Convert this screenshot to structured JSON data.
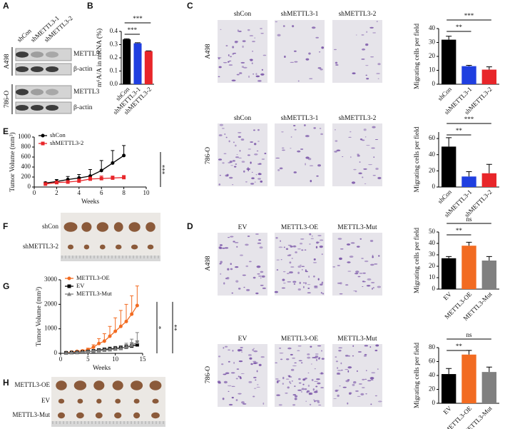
{
  "panel_letters": [
    "A",
    "B",
    "C",
    "D",
    "E",
    "F",
    "G",
    "H"
  ],
  "western_blot": {
    "lanes": [
      "shCon",
      "shMETTL3-1",
      "shMETTL3-2"
    ],
    "cell_lines": [
      {
        "name": "A498",
        "proteins": [
          "METTL3",
          "β-actin"
        ]
      },
      {
        "name": "786-O",
        "proteins": [
          "METTL3",
          "β-actin"
        ]
      }
    ]
  },
  "migration_images": [
    {
      "rows": [
        {
          "cell_line": "A498",
          "columns": [
            "shCon",
            "shMETTL3-1",
            "shMETTL3-2"
          ]
        },
        {
          "cell_line": "786-O",
          "columns": [
            "shCon",
            "shMETTL3-1",
            "shMETTL3-2"
          ]
        }
      ]
    },
    {
      "rows": [
        {
          "cell_line": "A498",
          "columns": [
            "EV",
            "METTL3-OE",
            "METTL3-Mut"
          ]
        },
        {
          "cell_line": "786-O",
          "columns": [
            "EV",
            "METTL3-OE",
            "METTL3-Mut"
          ]
        }
      ]
    }
  ],
  "tumor_photos": [
    {
      "rows": [
        "shCon",
        "shMETTL3-2"
      ]
    },
    {
      "rows": [
        "METTL3-OE",
        "EV",
        "METTL3-Mut"
      ]
    }
  ],
  "chart_data": [
    {
      "type": "bar",
      "ylabel": "m⁶A/A in mRNA (%)",
      "categories": [
        "shCon",
        "shMETTL3-1",
        "shMETTL3-2"
      ],
      "values": [
        0.34,
        0.31,
        0.25
      ],
      "errors": [
        0.004,
        0.004,
        0.003
      ],
      "colors": [
        "#000000",
        "#1f3fe0",
        "#e8262a"
      ],
      "ylim": [
        0,
        0.4
      ],
      "yticks": [
        {
          "value": 0,
          "label": "0.0"
        },
        0.1,
        0.2,
        0.3,
        0.4
      ],
      "comparisons": [
        {
          "label": "***",
          "between": [
            "shCon",
            "shMETTL3-1"
          ]
        },
        {
          "label": "***",
          "between": [
            "shCon",
            "shMETTL3-2"
          ]
        }
      ]
    },
    {
      "type": "bar",
      "ylabel": "Migrating cells per field",
      "categories": [
        "shCon",
        "shMETTL3-1",
        "shMETTL3-2"
      ],
      "values": [
        32,
        13,
        10.5
      ],
      "errors": [
        2.5,
        0.6,
        2
      ],
      "colors": [
        "#000000",
        "#1f3fe0",
        "#e8262a"
      ],
      "ylim": [
        0,
        40
      ],
      "yticks": [
        0,
        10,
        20,
        30,
        40
      ],
      "comparisons": [
        {
          "label": "**",
          "between": [
            "shCon",
            "shMETTL3-1"
          ]
        },
        {
          "label": "***",
          "between": [
            "shCon",
            "shMETTL3-2"
          ]
        }
      ]
    },
    {
      "type": "bar",
      "ylabel": "Migrating cells per field",
      "categories": [
        "shCon",
        "shMETTL3-1",
        "shMETTL3-2"
      ],
      "values": [
        50,
        13,
        17
      ],
      "errors": [
        11,
        6,
        11
      ],
      "colors": [
        "#000000",
        "#1f3fe0",
        "#e8262a"
      ],
      "ylim": [
        0,
        68
      ],
      "yticks": [
        0,
        20,
        40,
        60
      ],
      "comparisons": [
        {
          "label": "**",
          "between": [
            "shCon",
            "shMETTL3-1"
          ]
        },
        {
          "label": "***",
          "between": [
            "shCon",
            "shMETTL3-2"
          ]
        }
      ]
    },
    {
      "type": "bar",
      "ylabel": "Migrating cells per field",
      "categories": [
        "EV",
        "METTL3-OE",
        "METTL3-Mut"
      ],
      "values": [
        27,
        38,
        25
      ],
      "errors": [
        1.5,
        3,
        3.5
      ],
      "colors": [
        "#000000",
        "#f26b21",
        "#808080"
      ],
      "ylim": [
        0,
        50
      ],
      "yticks": [
        0,
        10,
        20,
        30,
        40,
        50
      ],
      "comparisons": [
        {
          "label": "**",
          "between": [
            "EV",
            "METTL3-OE"
          ]
        },
        {
          "label": "ns",
          "between": [
            "EV",
            "METTL3-Mut"
          ]
        }
      ]
    },
    {
      "type": "bar",
      "ylabel": "Migrating cells per field",
      "categories": [
        "EV",
        "METTL3-OE",
        "METTL3-Mut"
      ],
      "values": [
        42,
        70,
        45
      ],
      "errors": [
        8,
        6,
        7
      ],
      "colors": [
        "#000000",
        "#f26b21",
        "#808080"
      ],
      "ylim": [
        0,
        80
      ],
      "yticks": [
        0,
        20,
        40,
        60,
        80
      ],
      "comparisons": [
        {
          "label": "**",
          "between": [
            "EV",
            "METTL3-OE"
          ]
        },
        {
          "label": "ns",
          "between": [
            "EV",
            "METTL3-Mut"
          ]
        }
      ]
    },
    {
      "type": "line",
      "xlabel": "Weeks",
      "ylabel": "Tumor Volume (mm³)",
      "x": [
        1,
        2,
        3,
        4,
        5,
        6,
        7,
        8
      ],
      "xlim": [
        0,
        10
      ],
      "xticks": [
        0,
        2,
        4,
        6,
        8,
        10
      ],
      "ylim": [
        0,
        1000
      ],
      "yticks": [
        0,
        200,
        400,
        600,
        800,
        1000
      ],
      "legend": "upper left",
      "series": [
        {
          "name": "shCon",
          "color": "#000000",
          "marker": "circle",
          "values": [
            80,
            110,
            150,
            180,
            220,
            330,
            480,
            630
          ],
          "errors": [
            20,
            40,
            60,
            70,
            130,
            200,
            250,
            200
          ]
        },
        {
          "name": "shMETTL3-2",
          "color": "#e8262a",
          "marker": "square",
          "values": [
            60,
            90,
            100,
            120,
            160,
            170,
            180,
            190
          ],
          "errors": [
            20,
            30,
            30,
            40,
            40,
            50,
            40,
            40
          ]
        }
      ],
      "annotations": [
        "***"
      ]
    },
    {
      "type": "line",
      "xlabel": "Weeks",
      "ylabel": "Tumor Volume (mm³)",
      "x": [
        1,
        2,
        3,
        4,
        5,
        6,
        7,
        8,
        9,
        10,
        11,
        12,
        13,
        14
      ],
      "xlim": [
        0,
        15
      ],
      "xticks": [
        0,
        5,
        10,
        15
      ],
      "ylim": [
        0,
        3000
      ],
      "yticks": [
        0,
        1000,
        2000,
        3000
      ],
      "legend": "upper left",
      "series": [
        {
          "name": "METTL3-OE",
          "color": "#f26b21",
          "marker": "circle",
          "values": [
            30,
            50,
            80,
            100,
            150,
            250,
            400,
            500,
            700,
            900,
            1100,
            1300,
            1600,
            1950
          ],
          "errors": [
            10,
            20,
            30,
            40,
            60,
            100,
            200,
            300,
            400,
            550,
            650,
            700,
            750,
            800
          ]
        },
        {
          "name": "EV",
          "color": "#000000",
          "marker": "square",
          "values": [
            20,
            30,
            40,
            50,
            70,
            100,
            130,
            160,
            180,
            200,
            220,
            250,
            300,
            350
          ],
          "errors": [
            5,
            10,
            15,
            20,
            25,
            40,
            50,
            60,
            70,
            80,
            90,
            100,
            120,
            150
          ]
        },
        {
          "name": "METTL3-Mut",
          "color": "#808080",
          "marker": "triangle",
          "values": [
            20,
            30,
            40,
            50,
            70,
            90,
            110,
            130,
            150,
            180,
            200,
            260,
            330,
            450
          ],
          "errors": [
            5,
            10,
            15,
            20,
            25,
            30,
            40,
            50,
            60,
            80,
            100,
            150,
            250,
            400
          ]
        }
      ],
      "annotations": [
        "*",
        "**"
      ]
    }
  ]
}
